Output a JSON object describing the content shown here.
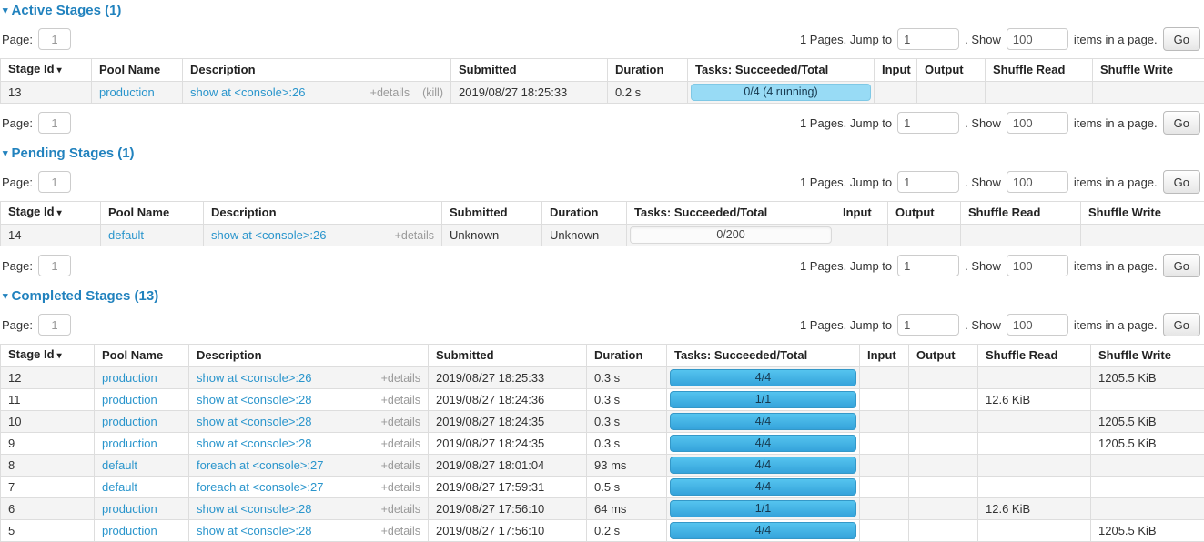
{
  "icons": {
    "collapse_arrow": "▾",
    "sort_desc_arrow": "▾"
  },
  "colors": {
    "heading": "#2182be",
    "link": "#2a95cc",
    "bar_succeeded_top": "#55c4ef",
    "bar_succeeded_bottom": "#35a3db",
    "bar_running": "#98dbf5",
    "muted": "#9a9a9a"
  },
  "pagination": {
    "page_label": "Page:",
    "page_value": "1",
    "pages_text": "1 Pages. Jump to",
    "jump_value": "1",
    "show_text": ". Show",
    "show_value": "100",
    "items_text": "items in a page.",
    "go_label": "Go"
  },
  "columns": [
    "Stage Id",
    "Pool Name",
    "Description",
    "Submitted",
    "Duration",
    "Tasks: Succeeded/Total",
    "Input",
    "Output",
    "Shuffle Read",
    "Shuffle Write"
  ],
  "sections": [
    {
      "title": "Active Stages (1)",
      "rows": [
        {
          "stage_id": "13",
          "pool_name": "production",
          "description": "show at <console>:26",
          "details": "+details",
          "kill": "(kill)",
          "submitted": "2019/08/27 18:25:33",
          "duration": "0.2 s",
          "tasks_label": "0/4 (4 running)",
          "tasks_state": "running",
          "tasks_percent": 100,
          "input": "",
          "output": "",
          "shuffle_read": "",
          "shuffle_write": ""
        }
      ]
    },
    {
      "title": "Pending Stages (1)",
      "rows": [
        {
          "stage_id": "14",
          "pool_name": "default",
          "description": "show at <console>:26",
          "details": "+details",
          "submitted": "Unknown",
          "duration": "Unknown",
          "tasks_label": "0/200",
          "tasks_state": "pending",
          "tasks_percent": 0,
          "input": "",
          "output": "",
          "shuffle_read": "",
          "shuffle_write": ""
        }
      ]
    },
    {
      "title": "Completed Stages (13)",
      "rows": [
        {
          "stage_id": "12",
          "pool_name": "production",
          "description": "show at <console>:26",
          "details": "+details",
          "submitted": "2019/08/27 18:25:33",
          "duration": "0.3 s",
          "tasks_label": "4/4",
          "tasks_state": "succeeded",
          "tasks_percent": 100,
          "input": "",
          "output": "",
          "shuffle_read": "",
          "shuffle_write": "1205.5 KiB"
        },
        {
          "stage_id": "11",
          "pool_name": "production",
          "description": "show at <console>:28",
          "details": "+details",
          "submitted": "2019/08/27 18:24:36",
          "duration": "0.3 s",
          "tasks_label": "1/1",
          "tasks_state": "succeeded",
          "tasks_percent": 100,
          "input": "",
          "output": "",
          "shuffle_read": "12.6 KiB",
          "shuffle_write": ""
        },
        {
          "stage_id": "10",
          "pool_name": "production",
          "description": "show at <console>:28",
          "details": "+details",
          "submitted": "2019/08/27 18:24:35",
          "duration": "0.3 s",
          "tasks_label": "4/4",
          "tasks_state": "succeeded",
          "tasks_percent": 100,
          "input": "",
          "output": "",
          "shuffle_read": "",
          "shuffle_write": "1205.5 KiB"
        },
        {
          "stage_id": "9",
          "pool_name": "production",
          "description": "show at <console>:28",
          "details": "+details",
          "submitted": "2019/08/27 18:24:35",
          "duration": "0.3 s",
          "tasks_label": "4/4",
          "tasks_state": "succeeded",
          "tasks_percent": 100,
          "input": "",
          "output": "",
          "shuffle_read": "",
          "shuffle_write": "1205.5 KiB"
        },
        {
          "stage_id": "8",
          "pool_name": "default",
          "description": "foreach at <console>:27",
          "details": "+details",
          "submitted": "2019/08/27 18:01:04",
          "duration": "93 ms",
          "tasks_label": "4/4",
          "tasks_state": "succeeded",
          "tasks_percent": 100,
          "input": "",
          "output": "",
          "shuffle_read": "",
          "shuffle_write": ""
        },
        {
          "stage_id": "7",
          "pool_name": "default",
          "description": "foreach at <console>:27",
          "details": "+details",
          "submitted": "2019/08/27 17:59:31",
          "duration": "0.5 s",
          "tasks_label": "4/4",
          "tasks_state": "succeeded",
          "tasks_percent": 100,
          "input": "",
          "output": "",
          "shuffle_read": "",
          "shuffle_write": ""
        },
        {
          "stage_id": "6",
          "pool_name": "production",
          "description": "show at <console>:28",
          "details": "+details",
          "submitted": "2019/08/27 17:56:10",
          "duration": "64 ms",
          "tasks_label": "1/1",
          "tasks_state": "succeeded",
          "tasks_percent": 100,
          "input": "",
          "output": "",
          "shuffle_read": "12.6 KiB",
          "shuffle_write": ""
        },
        {
          "stage_id": "5",
          "pool_name": "production",
          "description": "show at <console>:28",
          "details": "+details",
          "submitted": "2019/08/27 17:56:10",
          "duration": "0.2 s",
          "tasks_label": "4/4",
          "tasks_state": "succeeded",
          "tasks_percent": 100,
          "input": "",
          "output": "",
          "shuffle_read": "",
          "shuffle_write": "1205.5 KiB"
        }
      ]
    }
  ]
}
